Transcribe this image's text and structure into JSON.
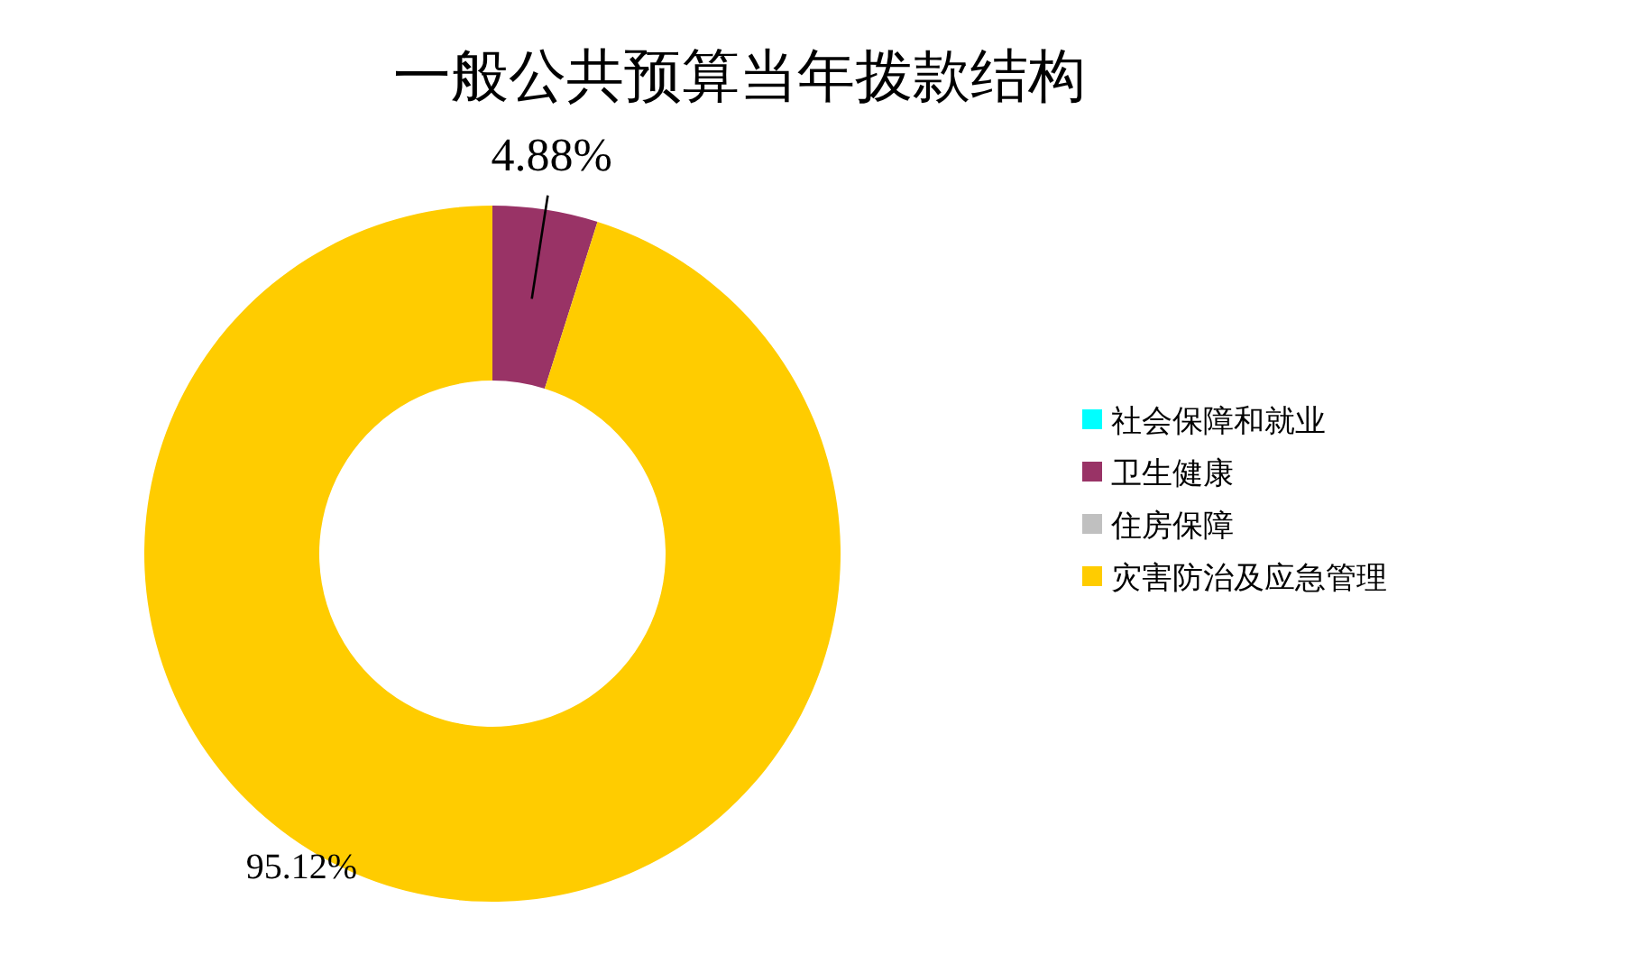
{
  "chart_data": {
    "type": "donut",
    "title": "一般公共预算当年拨款结构",
    "categories": [
      "社会保障和就业",
      "卫生健康",
      "住房保障",
      "灾害防治及应急管理"
    ],
    "values": [
      0,
      4.88,
      0,
      95.12
    ],
    "colors": [
      "#00ffff",
      "#993366",
      "#c0c0c0",
      "#ffcc00"
    ],
    "value_labels": [
      null,
      "4.88%",
      null,
      "95.12%"
    ],
    "legend": "right"
  }
}
